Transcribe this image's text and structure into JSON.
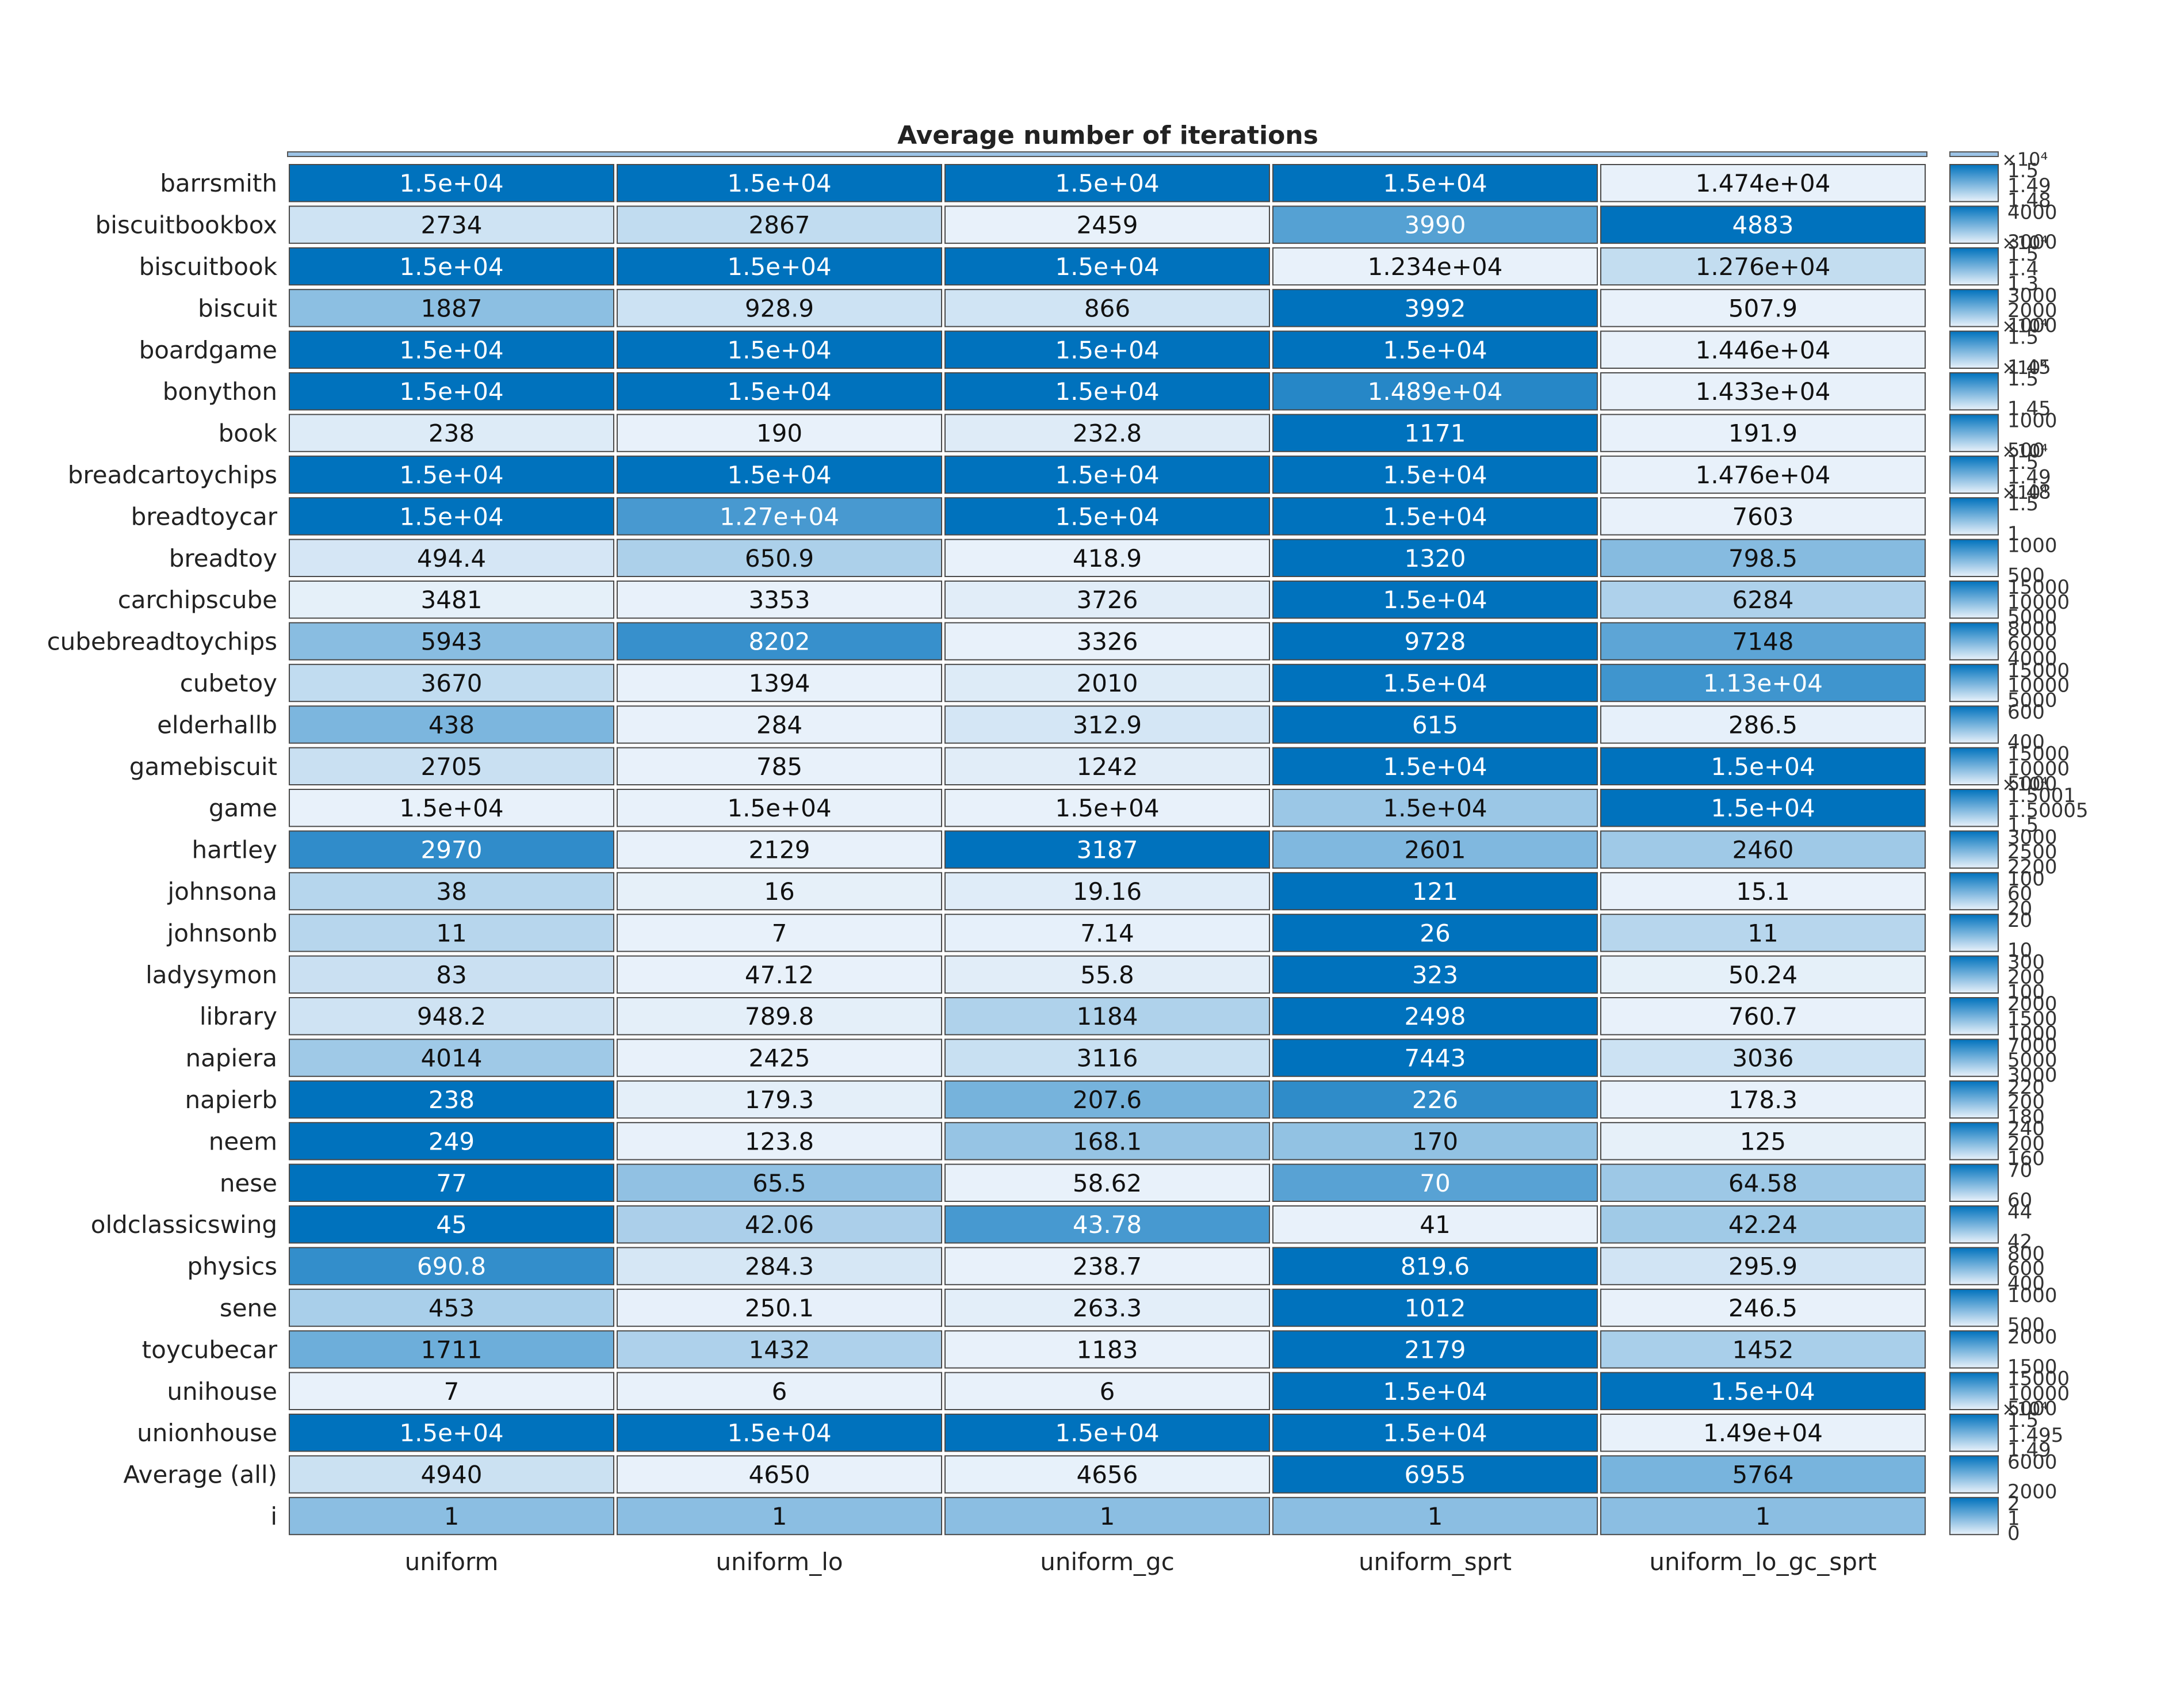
{
  "chart_data": {
    "type": "heatmap",
    "title": "Average number of iterations",
    "columns": [
      "uniform",
      "uniform_lo",
      "uniform_gc",
      "uniform_sprt",
      "uniform_lo_gc_sprt"
    ],
    "rows": [
      {
        "label": "barrsmith",
        "values": [
          15000,
          15000,
          15000,
          15000,
          14740
        ],
        "text": [
          "1.5e+04",
          "1.5e+04",
          "1.5e+04",
          "1.5e+04",
          "1.474e+04"
        ],
        "colorbar_ticks": [
          "1.5",
          "1.49",
          "1.48"
        ],
        "colorbar_multiplier": "×10⁴"
      },
      {
        "label": "biscuitbookbox",
        "values": [
          2734,
          2867,
          2459,
          3990,
          4883
        ],
        "text": [
          "2734",
          "2867",
          "2459",
          "3990",
          "4883"
        ],
        "colorbar_ticks": [
          "4000",
          "3000"
        ],
        "colorbar_multiplier": ""
      },
      {
        "label": "biscuitbook",
        "values": [
          15000,
          15000,
          15000,
          12340,
          12760
        ],
        "text": [
          "1.5e+04",
          "1.5e+04",
          "1.5e+04",
          "1.234e+04",
          "1.276e+04"
        ],
        "colorbar_ticks": [
          "1.5",
          "1.4",
          "1.3"
        ],
        "colorbar_multiplier": "×10⁴"
      },
      {
        "label": "biscuit",
        "values": [
          1887,
          928.9,
          866,
          3992,
          507.9
        ],
        "text": [
          "1887",
          "928.9",
          "866",
          "3992",
          "507.9"
        ],
        "colorbar_ticks": [
          "3000",
          "2000",
          "1000"
        ],
        "colorbar_multiplier": ""
      },
      {
        "label": "boardgame",
        "values": [
          15000,
          15000,
          15000,
          15000,
          14460
        ],
        "text": [
          "1.5e+04",
          "1.5e+04",
          "1.5e+04",
          "1.5e+04",
          "1.446e+04"
        ],
        "colorbar_ticks": [
          "1.5",
          "1.45"
        ],
        "colorbar_multiplier": "×10⁴"
      },
      {
        "label": "bonython",
        "values": [
          15000,
          15000,
          15000,
          14890,
          14330
        ],
        "text": [
          "1.5e+04",
          "1.5e+04",
          "1.5e+04",
          "1.489e+04",
          "1.433e+04"
        ],
        "colorbar_ticks": [
          "1.5",
          "1.45"
        ],
        "colorbar_multiplier": "×10⁴"
      },
      {
        "label": "book",
        "values": [
          238,
          190,
          232.8,
          1171,
          191.9
        ],
        "text": [
          "238",
          "190",
          "232.8",
          "1171",
          "191.9"
        ],
        "colorbar_ticks": [
          "1000",
          "500"
        ],
        "colorbar_multiplier": ""
      },
      {
        "label": "breadcartoychips",
        "values": [
          15000,
          15000,
          15000,
          15000,
          14760
        ],
        "text": [
          "1.5e+04",
          "1.5e+04",
          "1.5e+04",
          "1.5e+04",
          "1.476e+04"
        ],
        "colorbar_ticks": [
          "1.5",
          "1.49",
          "1.48"
        ],
        "colorbar_multiplier": "×10⁴"
      },
      {
        "label": "breadtoycar",
        "values": [
          15000,
          12700,
          15000,
          15000,
          7603
        ],
        "text": [
          "1.5e+04",
          "1.27e+04",
          "1.5e+04",
          "1.5e+04",
          "7603"
        ],
        "colorbar_ticks": [
          "1.5",
          "1"
        ],
        "colorbar_multiplier": "×10⁴"
      },
      {
        "label": "breadtoy",
        "values": [
          494.4,
          650.9,
          418.9,
          1320,
          798.5
        ],
        "text": [
          "494.4",
          "650.9",
          "418.9",
          "1320",
          "798.5"
        ],
        "colorbar_ticks": [
          "1000",
          "500"
        ],
        "colorbar_multiplier": ""
      },
      {
        "label": "carchipscube",
        "values": [
          3481,
          3353,
          3726,
          15000,
          6284
        ],
        "text": [
          "3481",
          "3353",
          "3726",
          "1.5e+04",
          "6284"
        ],
        "colorbar_ticks": [
          "15000",
          "10000",
          "5000"
        ],
        "colorbar_multiplier": ""
      },
      {
        "label": "cubebreadtoychips",
        "values": [
          5943,
          8202,
          3326,
          9728,
          7148
        ],
        "text": [
          "5943",
          "8202",
          "3326",
          "9728",
          "7148"
        ],
        "colorbar_ticks": [
          "8000",
          "6000",
          "4000"
        ],
        "colorbar_multiplier": ""
      },
      {
        "label": "cubetoy",
        "values": [
          3670,
          1394,
          2010,
          15000,
          11300
        ],
        "text": [
          "3670",
          "1394",
          "2010",
          "1.5e+04",
          "1.13e+04"
        ],
        "colorbar_ticks": [
          "15000",
          "10000",
          "5000"
        ],
        "colorbar_multiplier": ""
      },
      {
        "label": "elderhallb",
        "values": [
          438,
          284,
          312.9,
          615,
          286.5
        ],
        "text": [
          "438",
          "284",
          "312.9",
          "615",
          "286.5"
        ],
        "colorbar_ticks": [
          "600",
          "400"
        ],
        "colorbar_multiplier": ""
      },
      {
        "label": "gamebiscuit",
        "values": [
          2705,
          785,
          1242,
          15000,
          15000
        ],
        "text": [
          "2705",
          "785",
          "1242",
          "1.5e+04",
          "1.5e+04"
        ],
        "colorbar_ticks": [
          "15000",
          "10000",
          "5000"
        ],
        "colorbar_multiplier": ""
      },
      {
        "label": "game",
        "values": [
          15000,
          15000,
          15000,
          15000.3,
          15000.9
        ],
        "text": [
          "1.5e+04",
          "1.5e+04",
          "1.5e+04",
          "1.5e+04",
          "1.5e+04"
        ],
        "colorbar_ticks": [
          "1.5001",
          "1.50005",
          "1.5"
        ],
        "colorbar_multiplier": "×10⁴"
      },
      {
        "label": "hartley",
        "values": [
          2970,
          2129,
          3187,
          2601,
          2460
        ],
        "text": [
          "2970",
          "2129",
          "3187",
          "2601",
          "2460"
        ],
        "colorbar_ticks": [
          "3000",
          "2500",
          "2200"
        ],
        "colorbar_multiplier": ""
      },
      {
        "label": "johnsona",
        "values": [
          38,
          16,
          19.16,
          121,
          15.1
        ],
        "text": [
          "38",
          "16",
          "19.16",
          "121",
          "15.1"
        ],
        "colorbar_ticks": [
          "100",
          "60",
          "20"
        ],
        "colorbar_multiplier": ""
      },
      {
        "label": "johnsonb",
        "values": [
          11,
          7,
          7.14,
          26,
          11
        ],
        "text": [
          "11",
          "7",
          "7.14",
          "26",
          "11"
        ],
        "colorbar_ticks": [
          "20",
          "10"
        ],
        "colorbar_multiplier": ""
      },
      {
        "label": "ladysymon",
        "values": [
          83,
          47.12,
          55.8,
          323,
          50.24
        ],
        "text": [
          "83",
          "47.12",
          "55.8",
          "323",
          "50.24"
        ],
        "colorbar_ticks": [
          "300",
          "200",
          "100"
        ],
        "colorbar_multiplier": ""
      },
      {
        "label": "library",
        "values": [
          948.2,
          789.8,
          1184,
          2498,
          760.7
        ],
        "text": [
          "948.2",
          "789.8",
          "1184",
          "2498",
          "760.7"
        ],
        "colorbar_ticks": [
          "2000",
          "1500",
          "1000"
        ],
        "colorbar_multiplier": ""
      },
      {
        "label": "napiera",
        "values": [
          4014,
          2425,
          3116,
          7443,
          3036
        ],
        "text": [
          "4014",
          "2425",
          "3116",
          "7443",
          "3036"
        ],
        "colorbar_ticks": [
          "7000",
          "5000",
          "3000"
        ],
        "colorbar_multiplier": ""
      },
      {
        "label": "napierb",
        "values": [
          238,
          179.3,
          207.6,
          226,
          178.3
        ],
        "text": [
          "238",
          "179.3",
          "207.6",
          "226",
          "178.3"
        ],
        "colorbar_ticks": [
          "220",
          "200",
          "180"
        ],
        "colorbar_multiplier": ""
      },
      {
        "label": "neem",
        "values": [
          249,
          123.8,
          168.1,
          170,
          125
        ],
        "text": [
          "249",
          "123.8",
          "168.1",
          "170",
          "125"
        ],
        "colorbar_ticks": [
          "240",
          "200",
          "160"
        ],
        "colorbar_multiplier": ""
      },
      {
        "label": "nese",
        "values": [
          77,
          65.5,
          58.62,
          70,
          64.58
        ],
        "text": [
          "77",
          "65.5",
          "58.62",
          "70",
          "64.58"
        ],
        "colorbar_ticks": [
          "70",
          "60"
        ],
        "colorbar_multiplier": ""
      },
      {
        "label": "oldclassicswing",
        "values": [
          45,
          42.06,
          43.78,
          41,
          42.24
        ],
        "text": [
          "45",
          "42.06",
          "43.78",
          "41",
          "42.24"
        ],
        "colorbar_ticks": [
          "44",
          "42"
        ],
        "colorbar_multiplier": ""
      },
      {
        "label": "physics",
        "values": [
          690.8,
          284.3,
          238.7,
          819.6,
          295.9
        ],
        "text": [
          "690.8",
          "284.3",
          "238.7",
          "819.6",
          "295.9"
        ],
        "colorbar_ticks": [
          "800",
          "600",
          "400"
        ],
        "colorbar_multiplier": ""
      },
      {
        "label": "sene",
        "values": [
          453,
          250.1,
          263.3,
          1012,
          246.5
        ],
        "text": [
          "453",
          "250.1",
          "263.3",
          "1012",
          "246.5"
        ],
        "colorbar_ticks": [
          "1000",
          "500"
        ],
        "colorbar_multiplier": ""
      },
      {
        "label": "toycubecar",
        "values": [
          1711,
          1432,
          1183,
          2179,
          1452
        ],
        "text": [
          "1711",
          "1432",
          "1183",
          "2179",
          "1452"
        ],
        "colorbar_ticks": [
          "2000",
          "1500"
        ],
        "colorbar_multiplier": ""
      },
      {
        "label": "unihouse",
        "values": [
          7,
          6,
          6,
          15000,
          15000
        ],
        "text": [
          "7",
          "6",
          "6",
          "1.5e+04",
          "1.5e+04"
        ],
        "colorbar_ticks": [
          "15000",
          "10000",
          "5000"
        ],
        "colorbar_multiplier": ""
      },
      {
        "label": "unionhouse",
        "values": [
          15000,
          15000,
          15000,
          15000,
          14900
        ],
        "text": [
          "1.5e+04",
          "1.5e+04",
          "1.5e+04",
          "1.5e+04",
          "1.49e+04"
        ],
        "colorbar_ticks": [
          "1.5",
          "1.495",
          "1.49"
        ],
        "colorbar_multiplier": "×10⁴"
      },
      {
        "label": "Average (all)",
        "values": [
          4940,
          4650,
          4656,
          6955,
          5764
        ],
        "text": [
          "4940",
          "4650",
          "4656",
          "6955",
          "5764"
        ],
        "colorbar_ticks": [
          "6000",
          "2000"
        ],
        "colorbar_multiplier": ""
      },
      {
        "label": "i",
        "values": [
          1,
          1,
          1,
          1,
          1
        ],
        "text": [
          "1",
          "1",
          "1",
          "1",
          "1"
        ],
        "colorbar_ticks": [
          "2",
          "1",
          "0"
        ],
        "colorbar_multiplier": ""
      }
    ],
    "colormap": {
      "low": "#e8f1fa",
      "high": "#0072bd"
    },
    "text_color_dark": "#111111",
    "text_color_light": "#ffffff",
    "grid": false,
    "legend": "per-row colorbars on the right"
  }
}
